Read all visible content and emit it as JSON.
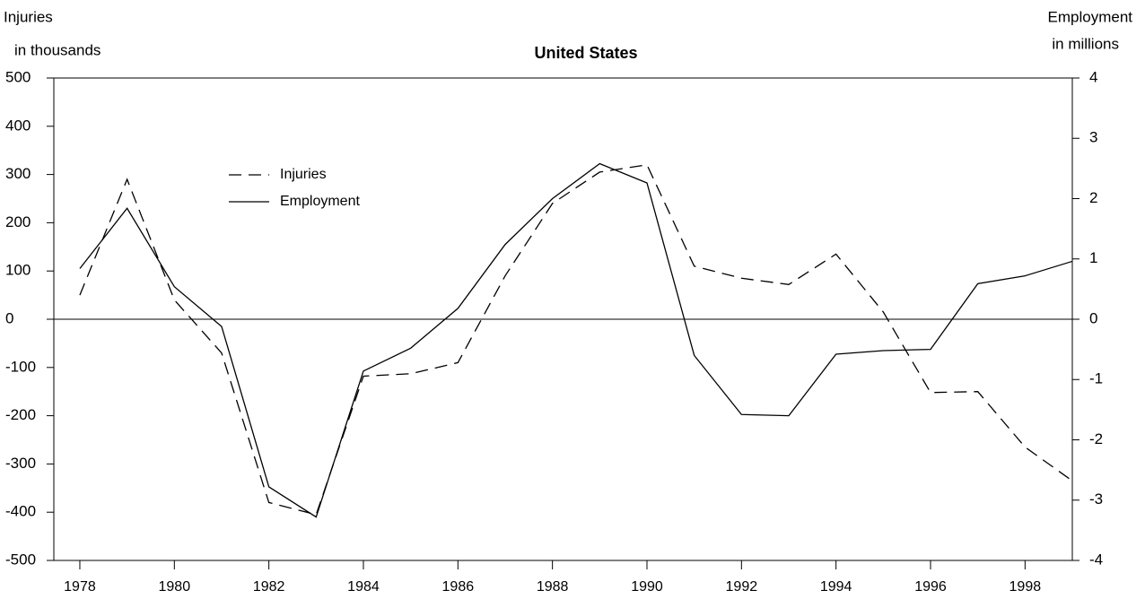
{
  "chart_data": {
    "type": "line",
    "title": "United States",
    "y_label": [
      "Injuries",
      "in thousands"
    ],
    "y2_label": [
      "Employment",
      "in millions"
    ],
    "x": [
      1978,
      1979,
      1980,
      1981,
      1982,
      1983,
      1984,
      1985,
      1986,
      1987,
      1988,
      1989,
      1990,
      1991,
      1992,
      1993,
      1994,
      1995,
      1996,
      1997,
      1998,
      1999
    ],
    "series": [
      {
        "name": "Injuries",
        "color": "#000000",
        "dash": true,
        "values": [
          50,
          290,
          40,
          -70,
          -380,
          -405,
          -118,
          -113,
          -90,
          90,
          240,
          305,
          320,
          110,
          85,
          72,
          135,
          15,
          -152,
          -150,
          -265,
          -335
        ]
      },
      {
        "name": "Employment",
        "color": "#000000",
        "dash": false,
        "axis": "y2",
        "values": [
          0.84,
          1.84,
          0.54,
          -0.12,
          -2.78,
          -3.28,
          -0.86,
          -0.48,
          0.18,
          1.24,
          2.0,
          2.58,
          2.26,
          -0.6,
          -1.58,
          -1.6,
          -0.58,
          -0.52,
          -0.5,
          0.59,
          0.72,
          0.96
        ]
      }
    ],
    "xlim": [
      1977.45,
      1999
    ],
    "xticks": [
      1978,
      1980,
      1982,
      1984,
      1986,
      1988,
      1990,
      1992,
      1994,
      1996,
      1998
    ],
    "ylim": [
      -500,
      500
    ],
    "yticks": [
      -500,
      -400,
      -300,
      -200,
      -100,
      0,
      100,
      200,
      300,
      400,
      500
    ],
    "y2lim": [
      -4,
      4
    ],
    "y2ticks": [
      -4,
      -3,
      -2,
      -1,
      0,
      1,
      2,
      3,
      4
    ],
    "grid": false
  }
}
